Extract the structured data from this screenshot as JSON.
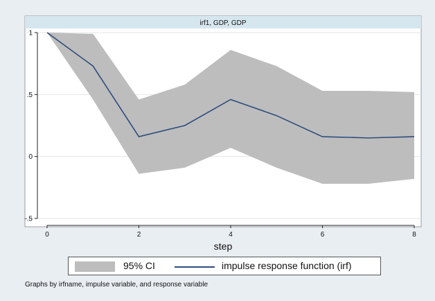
{
  "chart_data": {
    "type": "line",
    "title": "irf1, GDP, GDP",
    "xlabel": "step",
    "ylabel": "",
    "xlim": [
      0,
      8
    ],
    "ylim": [
      -0.5,
      1
    ],
    "x_ticks": [
      "0",
      "2",
      "4",
      "6",
      "8"
    ],
    "y_ticks": [
      "-.5",
      "0",
      ".5",
      "1"
    ],
    "x_tick_values": [
      0,
      2,
      4,
      6,
      8
    ],
    "y_tick_values": [
      -0.5,
      0,
      0.5,
      1
    ],
    "x": [
      0,
      1,
      2,
      3,
      4,
      5,
      6,
      7,
      8
    ],
    "series": [
      {
        "name": "impulse response function (irf)",
        "type": "line",
        "color": "#2d4c7c",
        "values": [
          1.0,
          0.73,
          0.16,
          0.25,
          0.46,
          0.33,
          0.16,
          0.15,
          0.16
        ]
      },
      {
        "name": "95% CI",
        "type": "band",
        "color": "#bdbdbd",
        "upper": [
          1.0,
          0.99,
          0.46,
          0.58,
          0.86,
          0.73,
          0.53,
          0.53,
          0.52
        ],
        "lower": [
          1.0,
          0.46,
          -0.14,
          -0.09,
          0.07,
          -0.09,
          -0.22,
          -0.22,
          -0.18
        ]
      }
    ],
    "grid": "horizontal",
    "legend_position": "bottom"
  },
  "legend": {
    "ci_label": "95% CI",
    "irf_label": "impulse response function (irf)"
  },
  "footnote": "Graphs by irfname, impulse variable, and response variable"
}
